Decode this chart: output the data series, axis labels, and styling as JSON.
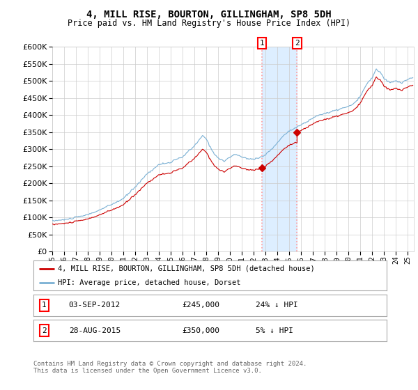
{
  "title": "4, MILL RISE, BOURTON, GILLINGHAM, SP8 5DH",
  "subtitle": "Price paid vs. HM Land Registry's House Price Index (HPI)",
  "ylim": [
    0,
    600000
  ],
  "yticks": [
    0,
    50000,
    100000,
    150000,
    200000,
    250000,
    300000,
    350000,
    400000,
    450000,
    500000,
    550000,
    600000
  ],
  "xlim_start": 1995.0,
  "xlim_end": 2025.5,
  "transaction1_date": 2012.67,
  "transaction1_price": 245000,
  "transaction2_date": 2015.65,
  "transaction2_price": 350000,
  "red_line_color": "#cc0000",
  "blue_line_color": "#7ab0d4",
  "highlight_color": "#ddeeff",
  "legend_label_red": "4, MILL RISE, BOURTON, GILLINGHAM, SP8 5DH (detached house)",
  "legend_label_blue": "HPI: Average price, detached house, Dorset",
  "background_color": "#ffffff",
  "grid_color": "#cccccc"
}
